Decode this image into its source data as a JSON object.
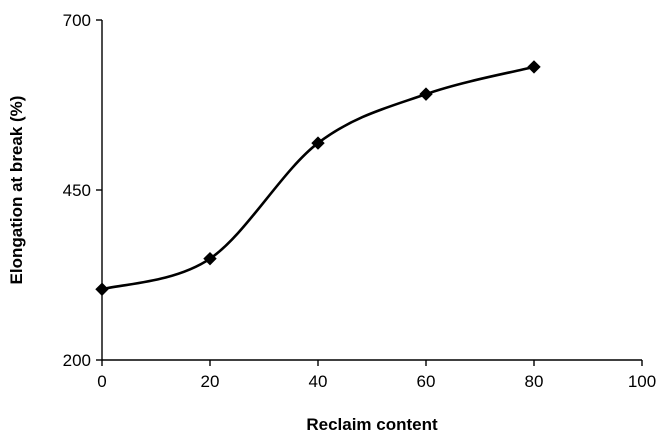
{
  "chart_data": {
    "type": "line",
    "title": "",
    "xlabel": "Reclaim content",
    "ylabel": "Elongation at break (%)",
    "xlim": [
      0,
      100
    ],
    "ylim": [
      200,
      700
    ],
    "xticks": [
      0,
      20,
      40,
      60,
      80,
      100
    ],
    "yticks": [
      200,
      450,
      700
    ],
    "grid": false,
    "legend": "none",
    "series": [
      {
        "x": [
          0,
          20,
          40,
          60,
          80
        ],
        "values": [
          304,
          349,
          519,
          591,
          631
        ],
        "marker": "diamond",
        "smooth": true,
        "color": "#000000"
      }
    ]
  }
}
